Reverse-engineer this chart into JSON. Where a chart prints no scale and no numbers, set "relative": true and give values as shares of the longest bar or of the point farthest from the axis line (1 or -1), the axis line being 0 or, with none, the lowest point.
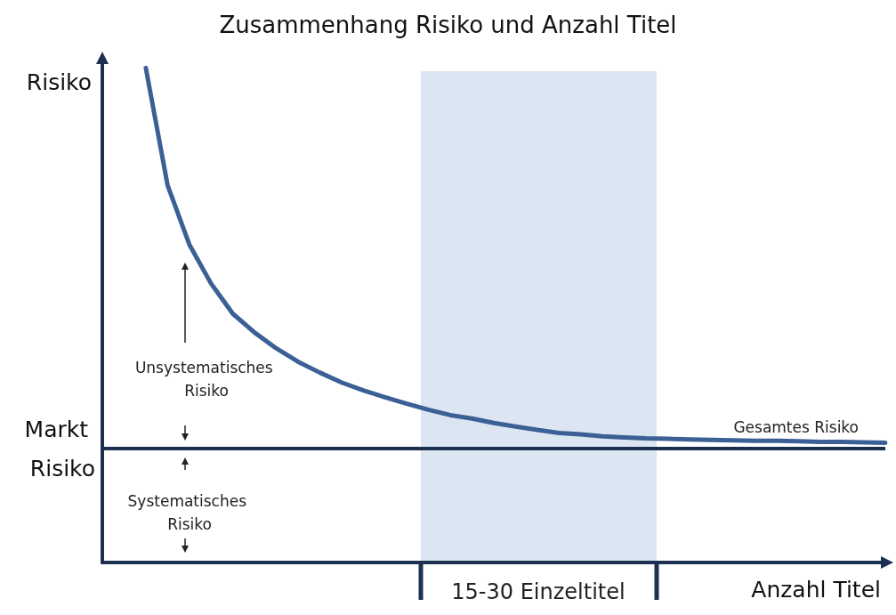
{
  "chart_data": {
    "type": "line",
    "title": "Zusammenhang Risiko und Anzahl Titel",
    "xlabel": "Anzahl Titel",
    "ylabel": "Risiko",
    "relative": true,
    "grid": false,
    "legend": false,
    "marker": "none",
    "line_style": "solid",
    "categories": [
      null,
      null,
      null,
      null,
      null,
      null,
      null,
      null,
      null,
      null,
      null,
      null,
      null,
      null,
      null,
      null,
      null,
      null,
      null,
      null,
      null,
      null,
      null,
      null,
      null,
      null,
      null,
      null,
      null,
      null,
      null,
      null,
      null,
      null,
      null,
      null,
      null
    ],
    "series": [
      {
        "name": "Gesamtes Risiko",
        "color": "#3b6096",
        "values": [
          null,
          null,
          1.0,
          0.763,
          0.643,
          0.564,
          0.503,
          0.465,
          0.433,
          0.406,
          0.384,
          0.364,
          0.348,
          0.334,
          0.321,
          0.309,
          0.298,
          0.291,
          0.282,
          0.275,
          0.268,
          0.262,
          0.259,
          0.255,
          0.253,
          0.251,
          0.25,
          0.249,
          0.248,
          0.247,
          0.246,
          0.246,
          0.245,
          0.244,
          0.244,
          0.243,
          0.242
        ]
      }
    ],
    "ref_lines": [
      {
        "axis": "y",
        "value": 0.228,
        "label": "Markt Risiko",
        "color": "#1c3050",
        "line_style": "solid"
      }
    ],
    "annotations": [
      "Unsystematisches Risiko",
      "Systematisches Risiko",
      "15-30 Einzeltitel"
    ]
  }
}
